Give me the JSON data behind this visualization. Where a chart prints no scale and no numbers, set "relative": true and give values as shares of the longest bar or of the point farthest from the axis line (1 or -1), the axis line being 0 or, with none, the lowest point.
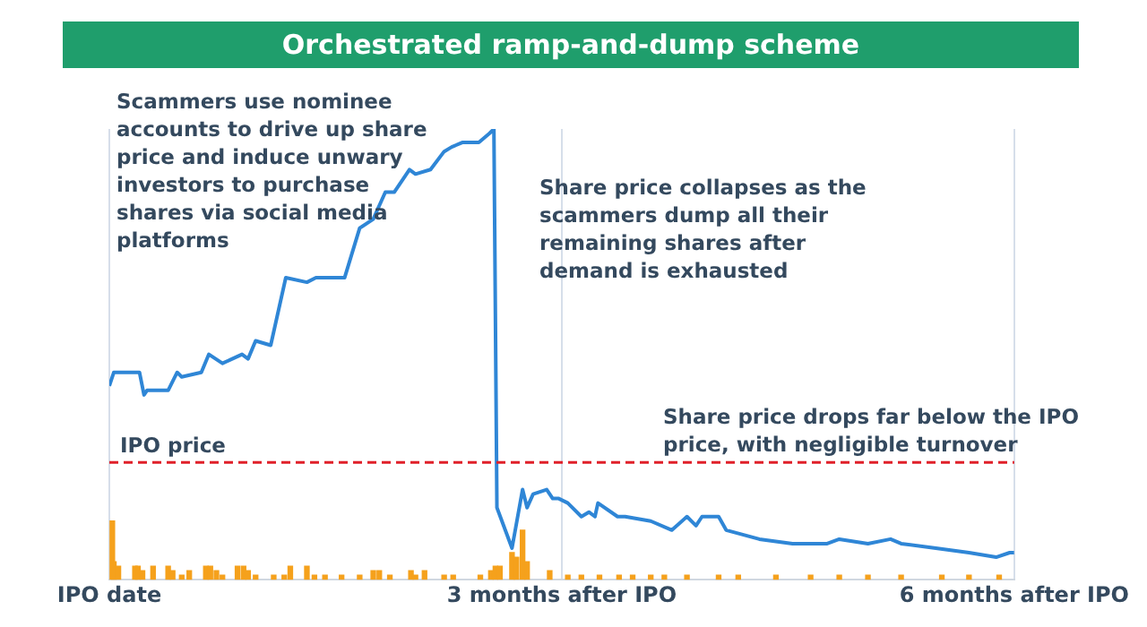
{
  "chart_data": {
    "type": "line",
    "title": "Orchestrated ramp-and-dump scheme",
    "relative": true,
    "legend": false,
    "grid": "x",
    "marker": "none",
    "line_style": "solid",
    "xlim": [
      0,
      6
    ],
    "xticks": [
      {
        "value": 0,
        "label": "IPO date"
      },
      {
        "value": 3,
        "label": "3 months after IPO"
      },
      {
        "value": 6,
        "label": "6 months after IPO"
      }
    ],
    "series": [
      {
        "type": "bar",
        "color": "#f5a11c",
        "x": [
          0.02,
          0.03,
          0.06,
          0.17,
          0.19,
          0.22,
          0.29,
          0.39,
          0.42,
          0.48,
          0.53,
          0.64,
          0.67,
          0.71,
          0.75,
          0.85,
          0.89,
          0.92,
          0.97,
          1.09,
          1.16,
          1.2,
          1.31,
          1.36,
          1.43,
          1.54,
          1.66,
          1.75,
          1.79,
          1.86,
          2.0,
          2.03,
          2.09,
          2.22,
          2.28,
          2.46,
          2.53,
          2.56,
          2.59,
          2.67,
          2.7,
          2.74,
          2.77,
          2.92,
          3.04,
          3.13,
          3.25,
          3.38,
          3.47,
          3.59,
          3.68,
          3.83,
          4.04,
          4.17,
          4.42,
          4.65,
          4.84,
          5.03,
          5.25,
          5.52,
          5.7,
          5.9
        ],
        "values": [
          0.13,
          0.04,
          0.03,
          0.03,
          0.03,
          0.02,
          0.03,
          0.03,
          0.02,
          0.01,
          0.02,
          0.03,
          0.03,
          0.02,
          0.01,
          0.03,
          0.03,
          0.02,
          0.01,
          0.01,
          0.01,
          0.03,
          0.03,
          0.01,
          0.01,
          0.01,
          0.01,
          0.02,
          0.02,
          0.01,
          0.02,
          0.01,
          0.02,
          0.01,
          0.01,
          0.01,
          0.02,
          0.03,
          0.03,
          0.06,
          0.05,
          0.11,
          0.04,
          0.02,
          0.01,
          0.01,
          0.01,
          0.01,
          0.01,
          0.01,
          0.01,
          0.01,
          0.01,
          0.01,
          0.01,
          0.01,
          0.01,
          0.01,
          0.01,
          0.01,
          0.01,
          0.01
        ]
      },
      {
        "color": "#2f86d6",
        "x": [
          0,
          0.03,
          0.2,
          0.23,
          0.25,
          0.39,
          0.45,
          0.48,
          0.61,
          0.66,
          0.75,
          0.88,
          0.92,
          0.97,
          1.07,
          1.17,
          1.31,
          1.37,
          1.56,
          1.66,
          1.75,
          1.83,
          1.89,
          1.99,
          2.03,
          2.13,
          2.22,
          2.27,
          2.34,
          2.45,
          2.52,
          2.55,
          2.57,
          2.67,
          2.74,
          2.77,
          2.81,
          2.9,
          2.94,
          2.98,
          3.04,
          3.13,
          3.18,
          3.22,
          3.24,
          3.37,
          3.42,
          3.59,
          3.73,
          3.83,
          3.89,
          3.93,
          4.04,
          4.09,
          4.31,
          4.53,
          4.76,
          4.84,
          5.03,
          5.18,
          5.25,
          5.48,
          5.7,
          5.88,
          5.97,
          6.0
        ],
        "values": [
          0.43,
          0.46,
          0.46,
          0.41,
          0.42,
          0.42,
          0.46,
          0.45,
          0.46,
          0.5,
          0.48,
          0.5,
          0.49,
          0.53,
          0.52,
          0.67,
          0.66,
          0.67,
          0.67,
          0.78,
          0.8,
          0.86,
          0.86,
          0.91,
          0.9,
          0.91,
          0.95,
          0.96,
          0.97,
          0.97,
          0.99,
          1,
          0.16,
          0.07,
          0.2,
          0.16,
          0.19,
          0.2,
          0.18,
          0.18,
          0.17,
          0.14,
          0.15,
          0.14,
          0.17,
          0.14,
          0.14,
          0.13,
          0.11,
          0.14,
          0.12,
          0.14,
          0.14,
          0.11,
          0.09,
          0.08,
          0.08,
          0.09,
          0.08,
          0.09,
          0.08,
          0.07,
          0.06,
          0.05,
          0.06,
          0.06
        ]
      }
    ],
    "ref_lines": [
      {
        "axis": "y",
        "value": 0.26,
        "label": "IPO price",
        "color": "#e0202a",
        "line_style": "dashed"
      }
    ],
    "annotations": [
      "Scammers use nominee accounts to drive up share price and induce unwary investors to purchase shares via social media platforms",
      "Share price collapses as the scammers dump all their remaining shares after demand is exhausted",
      "Share price drops far below the IPO price, with negligible turnover"
    ]
  }
}
